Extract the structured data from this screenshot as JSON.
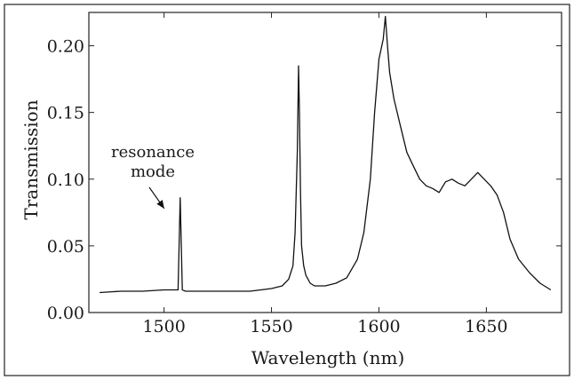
{
  "chart_data": {
    "type": "line",
    "xlabel": "Wavelength (nm)",
    "ylabel": "Transmission",
    "xlim": [
      1465,
      1685
    ],
    "ylim": [
      0.0,
      0.225
    ],
    "x_ticks": [
      1500,
      1550,
      1600,
      1650
    ],
    "y_ticks": [
      0.0,
      0.05,
      0.1,
      0.15,
      0.2
    ],
    "x_tick_labels": [
      "1500",
      "1550",
      "1600",
      "1650"
    ],
    "y_tick_labels": [
      "0.00",
      "0.05",
      "0.10",
      "0.15",
      "0.20"
    ],
    "grid": false,
    "annotation": {
      "line1": "resonance",
      "line2": "mode",
      "points_to": [
        1507.5,
        0.078
      ]
    },
    "series": [
      {
        "color": "#111111",
        "x": [
          1470,
          1480,
          1490,
          1500,
          1505,
          1506.5,
          1507.5,
          1508.5,
          1510,
          1520,
          1530,
          1540,
          1550,
          1555,
          1558,
          1560,
          1561,
          1562,
          1562.6,
          1563,
          1563.5,
          1564,
          1565,
          1566,
          1568,
          1570,
          1575,
          1580,
          1585,
          1590,
          1593,
          1596,
          1598,
          1600,
          1602,
          1603,
          1604,
          1605,
          1607,
          1610,
          1613,
          1616,
          1619,
          1622,
          1625,
          1628,
          1631,
          1634,
          1637,
          1640,
          1643,
          1646,
          1649,
          1652,
          1655,
          1658,
          1661,
          1665,
          1670,
          1675,
          1680
        ],
        "y": [
          0.015,
          0.016,
          0.016,
          0.017,
          0.017,
          0.017,
          0.086,
          0.017,
          0.016,
          0.016,
          0.016,
          0.016,
          0.018,
          0.02,
          0.025,
          0.035,
          0.06,
          0.12,
          0.185,
          0.15,
          0.09,
          0.05,
          0.035,
          0.028,
          0.022,
          0.02,
          0.02,
          0.022,
          0.026,
          0.04,
          0.06,
          0.1,
          0.15,
          0.19,
          0.205,
          0.222,
          0.2,
          0.18,
          0.16,
          0.14,
          0.12,
          0.11,
          0.1,
          0.095,
          0.093,
          0.09,
          0.098,
          0.1,
          0.097,
          0.095,
          0.1,
          0.105,
          0.1,
          0.095,
          0.088,
          0.075,
          0.055,
          0.04,
          0.03,
          0.022,
          0.017
        ]
      }
    ]
  }
}
